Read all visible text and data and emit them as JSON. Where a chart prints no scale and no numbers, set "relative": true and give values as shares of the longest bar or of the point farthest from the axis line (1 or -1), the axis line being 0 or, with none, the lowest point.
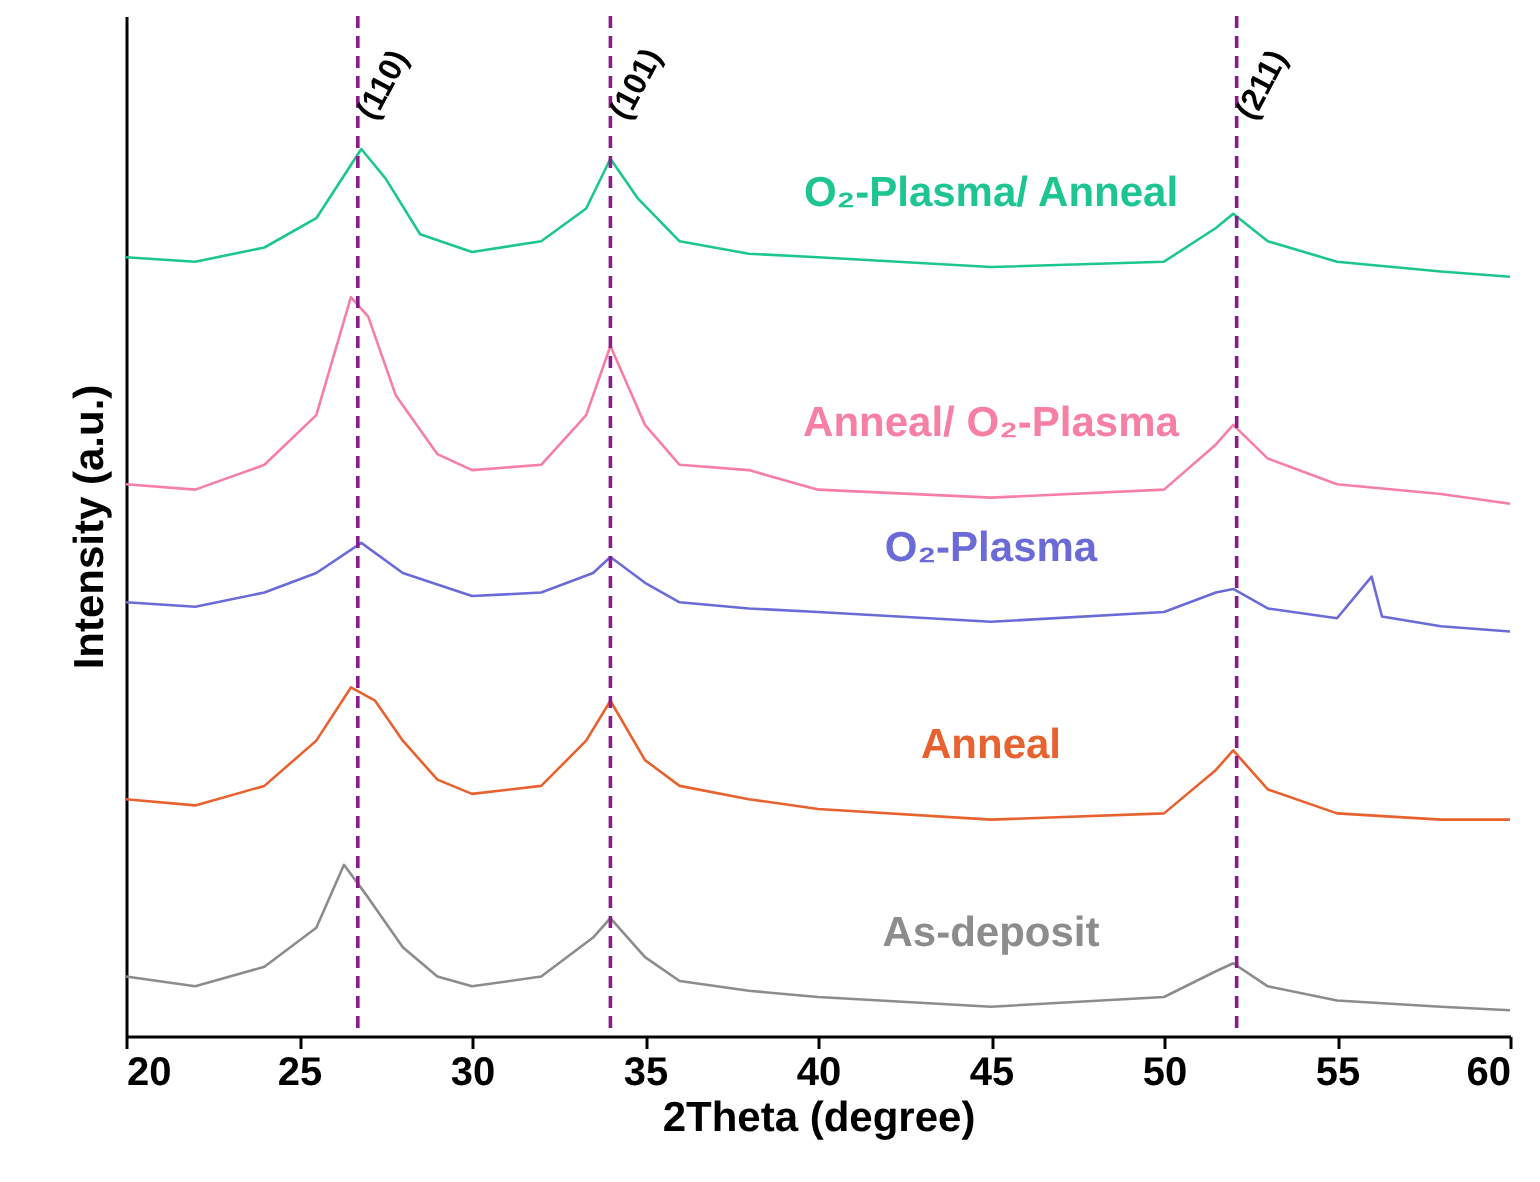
{
  "chart_data": {
    "type": "line",
    "relative": true,
    "xlabel": "2Theta (degree)",
    "ylabel": "Intensity (a.u.)",
    "xlim": [
      20,
      60
    ],
    "xticks": [
      20,
      25,
      30,
      35,
      40,
      45,
      50,
      55,
      60
    ],
    "grid": false,
    "marker": "none",
    "line_style": "solid",
    "series": [
      {
        "name": "O₂-Plasma/ Anneal",
        "color": "#1dc690",
        "x": [
          20,
          22,
          24,
          25.5,
          26.8,
          27.5,
          28.5,
          30,
          32,
          33.3,
          34,
          34.8,
          36,
          38,
          40,
          45,
          50,
          51.5,
          52,
          53,
          55,
          58,
          60
        ],
        "values": [
          0.878,
          0.873,
          0.889,
          0.922,
          1,
          0.967,
          0.904,
          0.884,
          0.896,
          0.933,
          0.989,
          0.944,
          0.896,
          0.882,
          0.878,
          0.867,
          0.873,
          0.911,
          0.927,
          0.896,
          0.873,
          0.862,
          0.856
        ]
      },
      {
        "name": "Anneal/ O₂-Plasma",
        "color": "#f77fa4",
        "x": [
          20,
          22,
          24,
          25.5,
          26.5,
          27,
          27.8,
          29,
          30,
          32,
          33.3,
          34,
          35,
          36,
          38,
          40,
          45,
          50,
          51.5,
          52,
          53,
          55,
          58,
          60
        ],
        "values": [
          0.622,
          0.616,
          0.644,
          0.7,
          0.833,
          0.811,
          0.722,
          0.656,
          0.638,
          0.644,
          0.7,
          0.778,
          0.689,
          0.644,
          0.638,
          0.616,
          0.607,
          0.616,
          0.667,
          0.689,
          0.651,
          0.622,
          0.611,
          0.6
        ]
      },
      {
        "name": "O₂-Plasma",
        "color": "#6b6bd8",
        "x": [
          20,
          22,
          24,
          25.5,
          26.8,
          28,
          30,
          32,
          33.5,
          34,
          35,
          36,
          38,
          40,
          45,
          50,
          51.5,
          52,
          53,
          55,
          56,
          56.3,
          58,
          60
        ],
        "values": [
          0.489,
          0.484,
          0.5,
          0.522,
          0.556,
          0.522,
          0.496,
          0.5,
          0.522,
          0.54,
          0.511,
          0.489,
          0.482,
          0.478,
          0.467,
          0.478,
          0.5,
          0.504,
          0.482,
          0.471,
          0.518,
          0.473,
          0.462,
          0.456
        ]
      },
      {
        "name": "Anneal",
        "color": "#e8622f",
        "x": [
          20,
          22,
          24,
          25.5,
          26.5,
          27.2,
          28,
          29,
          30,
          32,
          33.3,
          34,
          35,
          36,
          38,
          40,
          45,
          50,
          51.5,
          52,
          53,
          55,
          58,
          60
        ],
        "values": [
          0.267,
          0.26,
          0.282,
          0.333,
          0.393,
          0.378,
          0.333,
          0.289,
          0.273,
          0.282,
          0.333,
          0.378,
          0.311,
          0.282,
          0.267,
          0.256,
          0.244,
          0.251,
          0.3,
          0.322,
          0.278,
          0.251,
          0.244,
          0.244
        ]
      },
      {
        "name": "As-deposit",
        "color": "#8c8c8c",
        "x": [
          20,
          22,
          24,
          25.5,
          26.3,
          27,
          28,
          29,
          30,
          32,
          33.5,
          34,
          35,
          36,
          38,
          40,
          45,
          50,
          51.5,
          52,
          53,
          55,
          58,
          60
        ],
        "values": [
          0.067,
          0.056,
          0.078,
          0.122,
          0.193,
          0.156,
          0.1,
          0.067,
          0.056,
          0.067,
          0.111,
          0.133,
          0.089,
          0.062,
          0.051,
          0.044,
          0.033,
          0.044,
          0.073,
          0.082,
          0.056,
          0.04,
          0.033,
          0.029
        ]
      }
    ],
    "ref_lines": [
      {
        "axis": "x",
        "value": 26.7,
        "color": "#8b1a8b",
        "line_style": "dashed"
      },
      {
        "axis": "x",
        "value": 34.0,
        "color": "#8b1a8b",
        "line_style": "dashed"
      },
      {
        "axis": "x",
        "value": 52.1,
        "color": "#8b1a8b",
        "line_style": "dashed"
      }
    ],
    "annotations": [
      {
        "text": "(110)",
        "x": 26.7,
        "y": 1
      },
      {
        "text": "(101)",
        "x": 34.0,
        "y": 1
      },
      {
        "text": "(211)",
        "x": 52.1,
        "y": 1
      }
    ]
  }
}
